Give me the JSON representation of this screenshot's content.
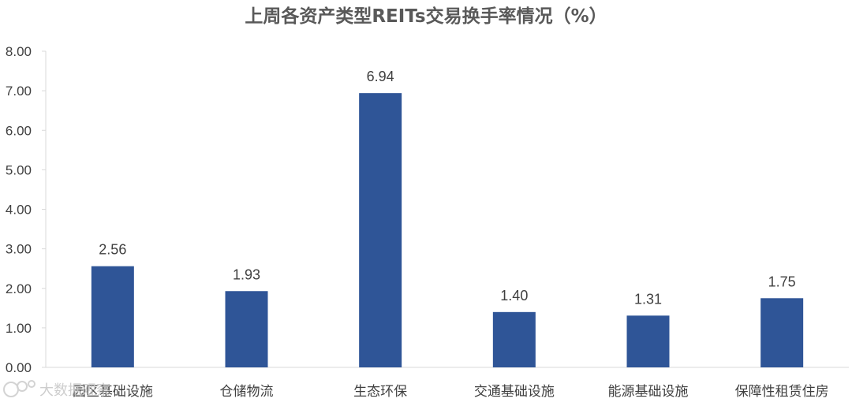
{
  "chart_data": {
    "type": "bar",
    "title": "上周各资产类型REITs交易换手率情况（%）",
    "xlabel": "",
    "ylabel": "",
    "categories": [
      "园区基础设施",
      "仓储物流",
      "生态环保",
      "交通基础设施",
      "能源基础设施",
      "保障性租赁住房"
    ],
    "values": [
      2.56,
      1.93,
      6.94,
      1.4,
      1.31,
      1.75
    ],
    "value_labels": [
      "2.56",
      "1.93",
      "6.94",
      "1.40",
      "1.31",
      "1.75"
    ],
    "ylim": [
      0,
      8
    ],
    "yticks": [
      "0.00",
      "1.00",
      "2.00",
      "3.00",
      "4.00",
      "5.00",
      "6.00",
      "7.00",
      "8.00"
    ],
    "grid": false,
    "legend": "none",
    "bar_color": "#2F5597"
  },
  "watermark": {
    "text": "大数据观察"
  }
}
